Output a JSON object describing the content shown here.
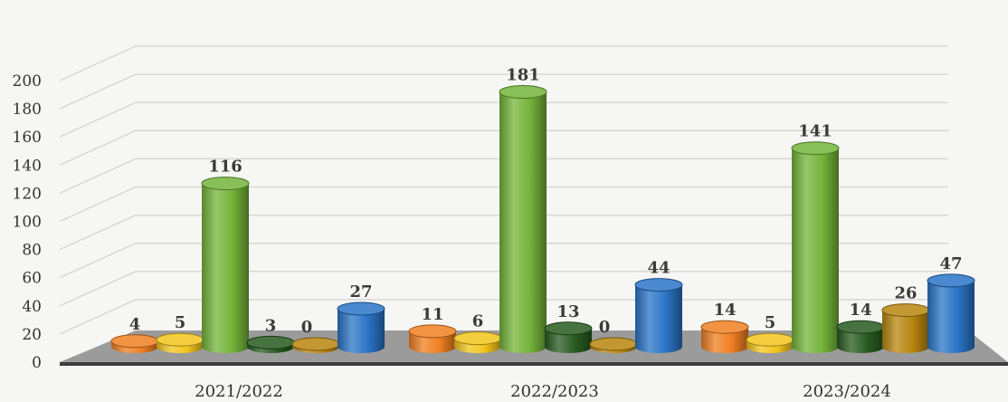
{
  "chart_data": {
    "type": "bar",
    "title": "",
    "xlabel": "",
    "ylabel": "",
    "ylim": [
      0,
      200
    ],
    "y_ticks": [
      0,
      20,
      40,
      60,
      80,
      100,
      120,
      140,
      160,
      180,
      200
    ],
    "grid": true,
    "legend": "none",
    "categories": [
      "2021/2022",
      "2022/2023",
      "2023/2024"
    ],
    "series": [
      {
        "color": "#f07f22",
        "values": [
          4,
          11,
          14
        ]
      },
      {
        "color": "#f2c51d",
        "values": [
          5,
          6,
          5
        ]
      },
      {
        "color": "#74b43a",
        "values": [
          116,
          181,
          141
        ]
      },
      {
        "color": "#275a1f",
        "values": [
          3,
          13,
          14
        ]
      },
      {
        "color": "#b8860f",
        "values": [
          0,
          0,
          26
        ]
      },
      {
        "color": "#2a74c6",
        "values": [
          27,
          44,
          47
        ]
      }
    ]
  }
}
